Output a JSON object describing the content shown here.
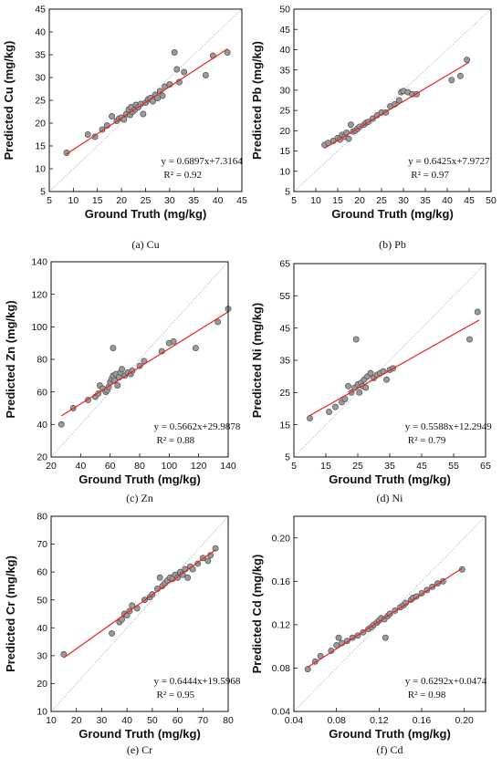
{
  "chart_data": [
    {
      "type": "scatter",
      "caption": "(a) Cu",
      "xlabel": "Ground Truth (mg/kg)",
      "ylabel": "Predicted Cu (mg/kg)",
      "xlim": [
        5,
        45
      ],
      "ylim": [
        5,
        45
      ],
      "xticks": [
        5,
        10,
        15,
        20,
        25,
        30,
        35,
        40,
        45
      ],
      "yticks": [
        5,
        10,
        15,
        20,
        25,
        30,
        35,
        40,
        45
      ],
      "fit": {
        "slope": 0.6897,
        "intercept": 7.3164,
        "x_range": [
          8.5,
          42.0
        ]
      },
      "equation": "y = 0.6897x+7.3164",
      "r2_label": "R² = 0.92",
      "points": [
        [
          8.6,
          13.5
        ],
        [
          13,
          17.5
        ],
        [
          14.5,
          17.0
        ],
        [
          16,
          18.6
        ],
        [
          17,
          19.5
        ],
        [
          18,
          21.5
        ],
        [
          19,
          20.5
        ],
        [
          19.5,
          21.0
        ],
        [
          20,
          21.2
        ],
        [
          20.5,
          20.8
        ],
        [
          21,
          22.0
        ],
        [
          21.5,
          23.0
        ],
        [
          21.8,
          21.8
        ],
        [
          22,
          23.5
        ],
        [
          22.3,
          22.5
        ],
        [
          22.8,
          23.0
        ],
        [
          23,
          24.0
        ],
        [
          23.5,
          23.5
        ],
        [
          24,
          24.2
        ],
        [
          24.5,
          22.0
        ],
        [
          25,
          24.5
        ],
        [
          25.5,
          25.2
        ],
        [
          26,
          25.5
        ],
        [
          26.5,
          24.8
        ],
        [
          27,
          26.2
        ],
        [
          27.5,
          25.5
        ],
        [
          28,
          27.0
        ],
        [
          28.5,
          26.0
        ],
        [
          29,
          28.0
        ],
        [
          30,
          28.5
        ],
        [
          31,
          35.5
        ],
        [
          31.5,
          31.8
        ],
        [
          32,
          29.0
        ],
        [
          33,
          31.2
        ],
        [
          37.5,
          30.5
        ],
        [
          39,
          34.8
        ],
        [
          42,
          35.5
        ]
      ]
    },
    {
      "type": "scatter",
      "caption": "(b) Pb",
      "xlabel": "Ground Truth (mg/kg)",
      "ylabel": "Predicted Pb (mg/kg)",
      "xlim": [
        5,
        50
      ],
      "ylim": [
        5,
        50
      ],
      "xticks": [
        5,
        10,
        15,
        20,
        25,
        30,
        35,
        40,
        45,
        50
      ],
      "yticks": [
        5,
        10,
        15,
        20,
        25,
        30,
        35,
        40,
        45,
        50
      ],
      "fit": {
        "slope": 0.6425,
        "intercept": 7.9727,
        "x_range": [
          12.0,
          45.0
        ]
      },
      "equation": "y = 0.6425x+7.9727",
      "r2_label": "R² = 0.97",
      "points": [
        [
          12,
          16.5
        ],
        [
          12.8,
          17.0
        ],
        [
          14,
          17.5
        ],
        [
          15,
          18.2
        ],
        [
          15.5,
          17.8
        ],
        [
          16,
          19.0
        ],
        [
          16.5,
          18.5
        ],
        [
          17,
          19.5
        ],
        [
          17.5,
          18.0
        ],
        [
          18,
          21.5
        ],
        [
          18.5,
          19.8
        ],
        [
          19,
          20.0
        ],
        [
          19.5,
          20.5
        ],
        [
          20,
          21.0
        ],
        [
          21,
          21.5
        ],
        [
          21.5,
          22.0
        ],
        [
          22,
          22.2
        ],
        [
          23,
          23.0
        ],
        [
          24,
          23.8
        ],
        [
          25,
          24.5
        ],
        [
          26,
          24.5
        ],
        [
          27,
          26.0
        ],
        [
          28,
          26.5
        ],
        [
          29,
          27.5
        ],
        [
          29.5,
          29.5
        ],
        [
          30,
          29.8
        ],
        [
          31,
          29.5
        ],
        [
          32,
          29.0
        ],
        [
          33,
          29.0
        ],
        [
          41,
          32.5
        ],
        [
          43,
          33.5
        ],
        [
          44.5,
          37.5
        ]
      ]
    },
    {
      "type": "scatter",
      "caption": "(c) Zn",
      "xlabel": "Ground Truth (mg/kg)",
      "ylabel": "Predicted Zn (mg/kg)",
      "xlim": [
        20,
        140
      ],
      "ylim": [
        20,
        140
      ],
      "xticks": [
        20,
        40,
        60,
        80,
        100,
        120,
        140
      ],
      "yticks": [
        20,
        40,
        60,
        80,
        100,
        120,
        140
      ],
      "fit": {
        "slope": 0.5662,
        "intercept": 29.9878,
        "x_range": [
          27.0,
          140.0
        ]
      },
      "equation": "y = 0.5662x+29.9878",
      "r2_label": "R² = 0.88",
      "points": [
        [
          27,
          40
        ],
        [
          35,
          50
        ],
        [
          45,
          55
        ],
        [
          50,
          57
        ],
        [
          52,
          59
        ],
        [
          53,
          64
        ],
        [
          55,
          62
        ],
        [
          57,
          60
        ],
        [
          58,
          61
        ],
        [
          59,
          63
        ],
        [
          60,
          66
        ],
        [
          61,
          68
        ],
        [
          62,
          87
        ],
        [
          62,
          70
        ],
        [
          63,
          67
        ],
        [
          64,
          71
        ],
        [
          65,
          64
        ],
        [
          66,
          69
        ],
        [
          67,
          72
        ],
        [
          68,
          74
        ],
        [
          70,
          70
        ],
        [
          72,
          72
        ],
        [
          74,
          71
        ],
        [
          75,
          73
        ],
        [
          80,
          76
        ],
        [
          83,
          79
        ],
        [
          95,
          85
        ],
        [
          100,
          90
        ],
        [
          103,
          91
        ],
        [
          118,
          87
        ],
        [
          133,
          103
        ],
        [
          140,
          111
        ]
      ]
    },
    {
      "type": "scatter",
      "caption": "(d) Ni",
      "xlabel": "Ground Truth (mg/kg)",
      "ylabel": "Predicted Ni (mg/kg)",
      "xlim": [
        5,
        65
      ],
      "ylim": [
        5,
        65
      ],
      "xticks": [
        5,
        15,
        25,
        35,
        45,
        55,
        65
      ],
      "yticks": [
        5,
        15,
        25,
        35,
        45,
        55,
        65
      ],
      "fit": {
        "slope": 0.5588,
        "intercept": 12.2949,
        "x_range": [
          10.0,
          63.0
        ]
      },
      "equation": "y = 0.5588x+12.2949",
      "r2_label": "R² = 0.79",
      "points": [
        [
          10,
          17.0
        ],
        [
          16,
          19.0
        ],
        [
          18,
          20.5
        ],
        [
          20,
          22.0
        ],
        [
          21,
          23.0
        ],
        [
          22,
          27.0
        ],
        [
          23,
          25.0
        ],
        [
          24,
          26.5
        ],
        [
          24.5,
          41.5
        ],
        [
          25,
          27.5
        ],
        [
          25.5,
          25.0
        ],
        [
          26,
          28.0
        ],
        [
          26.5,
          27.0
        ],
        [
          27,
          29.0
        ],
        [
          27.5,
          26.5
        ],
        [
          28,
          30.0
        ],
        [
          29,
          31.0
        ],
        [
          30,
          29.5
        ],
        [
          31,
          30.5
        ],
        [
          32,
          31.0
        ],
        [
          33,
          31.5
        ],
        [
          34,
          29.0
        ],
        [
          35,
          32.0
        ],
        [
          36,
          32.5
        ],
        [
          60,
          41.5
        ],
        [
          62.5,
          50.0
        ]
      ]
    },
    {
      "type": "scatter",
      "caption": "(e) Cr",
      "xlabel": "Ground Truth (mg/kg)",
      "ylabel": "Predicted Cr (mg/kg)",
      "xlim": [
        10,
        80
      ],
      "ylim": [
        10,
        80
      ],
      "xticks": [
        10,
        20,
        30,
        40,
        50,
        60,
        70,
        80
      ],
      "yticks": [
        10,
        20,
        30,
        40,
        50,
        60,
        70,
        80
      ],
      "fit": {
        "slope": 0.6444,
        "intercept": 19.5968,
        "x_range": [
          15.0,
          75.0
        ]
      },
      "equation": "y = 0.6444x+19.5968",
      "r2_label": "R² = 0.95",
      "points": [
        [
          15,
          30.5
        ],
        [
          34,
          38
        ],
        [
          37,
          42
        ],
        [
          38,
          43
        ],
        [
          39,
          45
        ],
        [
          40,
          44.5
        ],
        [
          41,
          46
        ],
        [
          42,
          48
        ],
        [
          44,
          47
        ],
        [
          47,
          50
        ],
        [
          49,
          51
        ],
        [
          50,
          52
        ],
        [
          52,
          54
        ],
        [
          53,
          58
        ],
        [
          54,
          55
        ],
        [
          55,
          56
        ],
        [
          56,
          57
        ],
        [
          57,
          58
        ],
        [
          58,
          57.5
        ],
        [
          59,
          59
        ],
        [
          60,
          58
        ],
        [
          61,
          60
        ],
        [
          62,
          59
        ],
        [
          63,
          61
        ],
        [
          64,
          58
        ],
        [
          65,
          62
        ],
        [
          66,
          61
        ],
        [
          68,
          63
        ],
        [
          70,
          65
        ],
        [
          72,
          64
        ],
        [
          73,
          66
        ],
        [
          75,
          68.5
        ]
      ]
    },
    {
      "type": "scatter",
      "caption": "(f) Cd",
      "xlabel": "Ground Truth (mg/kg)",
      "ylabel": "Predicted Cd (mg/kg)",
      "xlim": [
        0.04,
        0.22
      ],
      "ylim": [
        0.04,
        0.22
      ],
      "xticks": [
        "0.04",
        "0.08",
        "0.12",
        "0.16",
        "0.20"
      ],
      "yticks": [
        "0.04",
        "0.08",
        "0.12",
        "0.16",
        "0.20"
      ],
      "fit": {
        "slope": 0.6292,
        "intercept": 0.0474,
        "x_range": [
          0.053,
          0.198
        ]
      },
      "equation": "y = 0.6292x+0.0474",
      "r2_label": "R² = 0.98",
      "points": [
        [
          0.053,
          0.079
        ],
        [
          0.06,
          0.086
        ],
        [
          0.065,
          0.091
        ],
        [
          0.075,
          0.096
        ],
        [
          0.08,
          0.101
        ],
        [
          0.082,
          0.108
        ],
        [
          0.085,
          0.103
        ],
        [
          0.09,
          0.105
        ],
        [
          0.095,
          0.108
        ],
        [
          0.1,
          0.11
        ],
        [
          0.105,
          0.113
        ],
        [
          0.11,
          0.116
        ],
        [
          0.113,
          0.118
        ],
        [
          0.115,
          0.12
        ],
        [
          0.118,
          0.122
        ],
        [
          0.12,
          0.124
        ],
        [
          0.122,
          0.126
        ],
        [
          0.125,
          0.125
        ],
        [
          0.126,
          0.108
        ],
        [
          0.128,
          0.128
        ],
        [
          0.13,
          0.13
        ],
        [
          0.135,
          0.133
        ],
        [
          0.14,
          0.136
        ],
        [
          0.143,
          0.138
        ],
        [
          0.145,
          0.14
        ],
        [
          0.15,
          0.143
        ],
        [
          0.152,
          0.145
        ],
        [
          0.155,
          0.146
        ],
        [
          0.16,
          0.149
        ],
        [
          0.165,
          0.152
        ],
        [
          0.17,
          0.155
        ],
        [
          0.175,
          0.158
        ],
        [
          0.18,
          0.16
        ],
        [
          0.198,
          0.171
        ]
      ]
    }
  ]
}
